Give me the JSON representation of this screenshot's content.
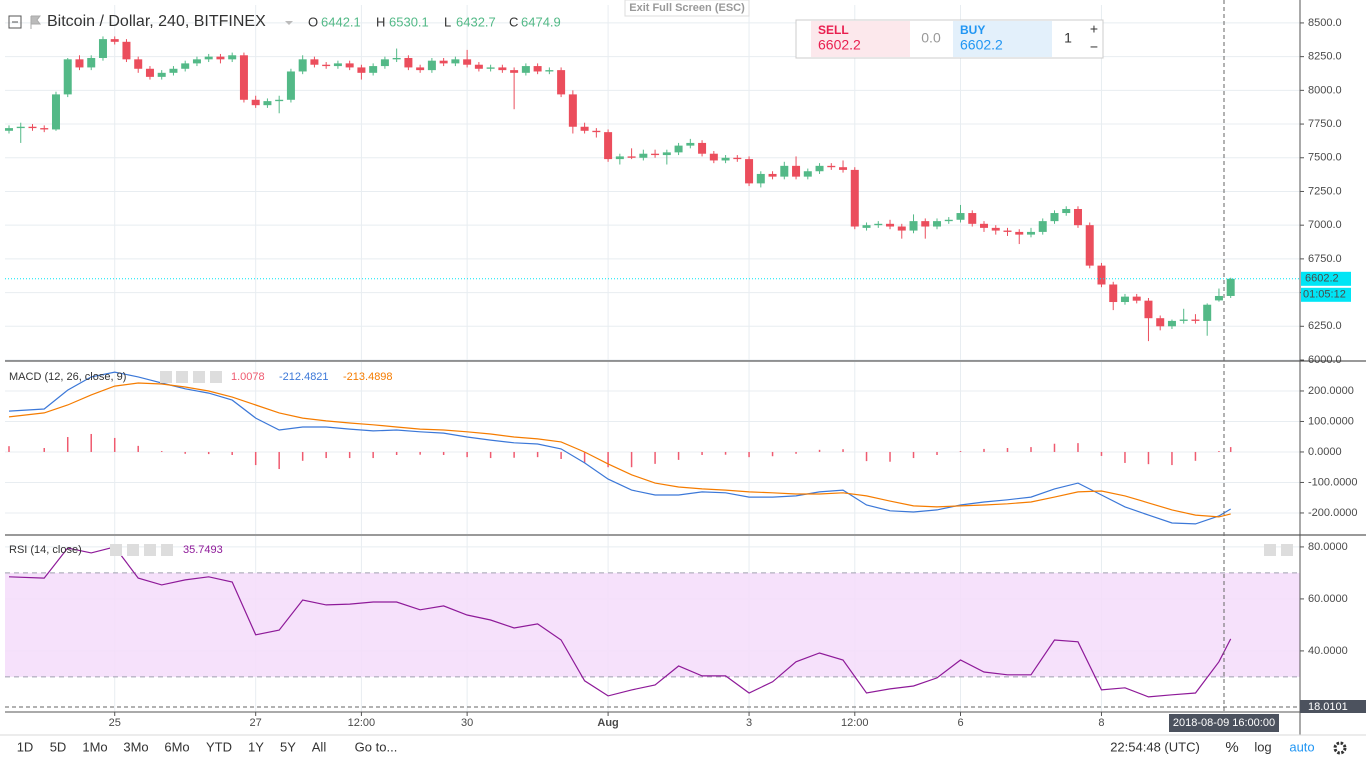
{
  "header": {
    "exit_button": "Exit Full Screen (ESC)"
  },
  "trade": {
    "sell_label": "SELL",
    "sell_price": "6602.2",
    "spread": "0.0",
    "buy_label": "BUY",
    "buy_price": "6602.2",
    "quantity": "1",
    "plus": "+",
    "minus": "−"
  },
  "toolbar": {
    "ranges": [
      "1D",
      "5D",
      "1Mo",
      "3Mo",
      "6Mo",
      "YTD",
      "1Y",
      "5Y",
      "All"
    ],
    "goto": "Go to...",
    "clock": "22:54:48 (UTC)",
    "percent": "%",
    "log": "log",
    "auto": "auto"
  },
  "crosshair": {
    "time": "2018-08-09 16:00:00",
    "value": "18.0101"
  },
  "chart_data": [
    {
      "type": "candlestick",
      "title": "Bitcoin / Dollar, 240, BITFINEX",
      "ohlc_labels": [
        "O",
        "H",
        "L",
        "C"
      ],
      "countdown": "01:05:12",
      "colors": {
        "up": "#53b987",
        "down": "#eb4d5c",
        "last": "#00e5f5"
      },
      "xlim": [
        -0.34,
        109.9
      ],
      "xticks": [
        {
          "value": 9,
          "label": "25"
        },
        {
          "value": 21,
          "label": "27"
        },
        {
          "value": 30,
          "label": "12:00"
        },
        {
          "value": 39,
          "label": "30"
        },
        {
          "value": 51,
          "label": "Aug"
        },
        {
          "value": 63,
          "label": "3"
        },
        {
          "value": 72,
          "label": "12:00"
        },
        {
          "value": 81,
          "label": "6"
        },
        {
          "value": 93,
          "label": "8"
        }
      ],
      "ylim": [
        6000,
        8633
      ],
      "yticks": [
        {
          "value": 6000,
          "label": "6000.0"
        },
        {
          "value": 6250,
          "label": "6250.0"
        },
        {
          "value": 6500,
          "label": "6500.0"
        },
        {
          "value": 6750,
          "label": "6750.0"
        },
        {
          "value": 7000,
          "label": "7000.0"
        },
        {
          "value": 7250,
          "label": "7250.0"
        },
        {
          "value": 7500,
          "label": "7500.0"
        },
        {
          "value": 7750,
          "label": "7750.0"
        },
        {
          "value": 8000,
          "label": "8000.0"
        },
        {
          "value": 8250,
          "label": "8250.0"
        },
        {
          "value": 8500,
          "label": "8500.0"
        }
      ],
      "grid": true,
      "candles": [
        [
          7700,
          7740,
          7680,
          7720
        ],
        [
          7720,
          7760,
          7610,
          7730
        ],
        [
          7730,
          7750,
          7700,
          7720
        ],
        [
          7720,
          7740,
          7690,
          7710
        ],
        [
          7710,
          7990,
          7700,
          7970
        ],
        [
          7970,
          8240,
          7950,
          8230
        ],
        [
          8230,
          8260,
          8150,
          8170
        ],
        [
          8170,
          8260,
          8150,
          8240
        ],
        [
          8240,
          8400,
          8220,
          8380
        ],
        [
          8380,
          8400,
          8340,
          8360
        ],
        [
          8360,
          8380,
          8210,
          8230
        ],
        [
          8230,
          8250,
          8130,
          8160
        ],
        [
          8160,
          8180,
          8080,
          8100
        ],
        [
          8100,
          8150,
          8080,
          8130
        ],
        [
          8130,
          8180,
          8110,
          8160
        ],
        [
          8160,
          8220,
          8140,
          8200
        ],
        [
          8200,
          8250,
          8180,
          8230
        ],
        [
          8230,
          8270,
          8210,
          8250
        ],
        [
          8250,
          8270,
          8200,
          8230
        ],
        [
          8230,
          8280,
          8210,
          8260
        ],
        [
          8260,
          8280,
          7910,
          7930
        ],
        [
          7930,
          7960,
          7870,
          7890
        ],
        [
          7890,
          7940,
          7870,
          7920
        ],
        [
          7920,
          7960,
          7830,
          7930
        ],
        [
          7930,
          8160,
          7910,
          8140
        ],
        [
          8140,
          8260,
          8120,
          8230
        ],
        [
          8230,
          8250,
          8170,
          8190
        ],
        [
          8190,
          8210,
          8160,
          8180
        ],
        [
          8180,
          8220,
          8160,
          8200
        ],
        [
          8200,
          8220,
          8150,
          8170
        ],
        [
          8170,
          8190,
          8080,
          8130
        ],
        [
          8130,
          8200,
          8110,
          8180
        ],
        [
          8180,
          8250,
          8160,
          8230
        ],
        [
          8230,
          8310,
          8210,
          8240
        ],
        [
          8240,
          8260,
          8150,
          8170
        ],
        [
          8170,
          8190,
          8130,
          8150
        ],
        [
          8150,
          8240,
          8130,
          8220
        ],
        [
          8220,
          8240,
          8180,
          8200
        ],
        [
          8200,
          8250,
          8180,
          8230
        ],
        [
          8230,
          8300,
          8170,
          8190
        ],
        [
          8190,
          8210,
          8140,
          8160
        ],
        [
          8160,
          8190,
          8140,
          8170
        ],
        [
          8170,
          8190,
          8130,
          8150
        ],
        [
          8150,
          8170,
          7860,
          8130
        ],
        [
          8130,
          8200,
          8110,
          8180
        ],
        [
          8180,
          8200,
          8120,
          8140
        ],
        [
          8140,
          8170,
          8120,
          8150
        ],
        [
          8150,
          8170,
          7950,
          7970
        ],
        [
          7970,
          8000,
          7680,
          7730
        ],
        [
          7730,
          7760,
          7680,
          7700
        ],
        [
          7700,
          7720,
          7650,
          7690
        ],
        [
          7690,
          7710,
          7470,
          7490
        ],
        [
          7490,
          7530,
          7450,
          7510
        ],
        [
          7510,
          7570,
          7490,
          7500
        ],
        [
          7500,
          7560,
          7480,
          7530
        ],
        [
          7530,
          7560,
          7500,
          7520
        ],
        [
          7520,
          7560,
          7450,
          7540
        ],
        [
          7540,
          7610,
          7520,
          7590
        ],
        [
          7590,
          7640,
          7570,
          7610
        ],
        [
          7610,
          7630,
          7510,
          7530
        ],
        [
          7530,
          7550,
          7460,
          7480
        ],
        [
          7480,
          7520,
          7460,
          7500
        ],
        [
          7500,
          7520,
          7470,
          7490
        ],
        [
          7490,
          7510,
          7290,
          7310
        ],
        [
          7310,
          7400,
          7280,
          7380
        ],
        [
          7380,
          7400,
          7340,
          7360
        ],
        [
          7360,
          7470,
          7340,
          7440
        ],
        [
          7440,
          7510,
          7340,
          7360
        ],
        [
          7360,
          7420,
          7340,
          7400
        ],
        [
          7400,
          7460,
          7380,
          7440
        ],
        [
          7440,
          7460,
          7410,
          7430
        ],
        [
          7430,
          7480,
          7390,
          7410
        ],
        [
          7410,
          7430,
          6970,
          6990
        ],
        [
          6980,
          7020,
          6960,
          7000
        ],
        [
          7000,
          7030,
          6980,
          7010
        ],
        [
          7010,
          7040,
          6970,
          6990
        ],
        [
          6990,
          7010,
          6900,
          6960
        ],
        [
          6960,
          7080,
          6940,
          7030
        ],
        [
          7030,
          7050,
          6900,
          6990
        ],
        [
          6990,
          7050,
          6970,
          7030
        ],
        [
          7030,
          7060,
          7010,
          7040
        ],
        [
          7040,
          7150,
          7020,
          7090
        ],
        [
          7090,
          7110,
          6990,
          7010
        ],
        [
          7010,
          7030,
          6950,
          6980
        ],
        [
          6980,
          7000,
          6930,
          6960
        ],
        [
          6960,
          6980,
          6920,
          6950
        ],
        [
          6950,
          6970,
          6860,
          6930
        ],
        [
          6930,
          6980,
          6910,
          6950
        ],
        [
          6950,
          7050,
          6930,
          7030
        ],
        [
          7030,
          7110,
          7010,
          7090
        ],
        [
          7090,
          7140,
          7070,
          7120
        ],
        [
          7120,
          7140,
          6980,
          7000
        ],
        [
          7000,
          7020,
          6680,
          6700
        ],
        [
          6700,
          6720,
          6540,
          6560
        ],
        [
          6560,
          6580,
          6370,
          6430
        ],
        [
          6430,
          6490,
          6410,
          6470
        ],
        [
          6470,
          6490,
          6420,
          6440
        ],
        [
          6440,
          6460,
          6140,
          6310
        ],
        [
          6310,
          6330,
          6220,
          6250
        ],
        [
          6250,
          6300,
          6230,
          6290
        ],
        [
          6290,
          6380,
          6270,
          6300
        ],
        [
          6300,
          6340,
          6270,
          6290
        ],
        [
          6290,
          6420,
          6180,
          6410
        ],
        [
          6442.1,
          6530.1,
          6432.7,
          6474.9
        ],
        [
          6474.9,
          6610,
          6460,
          6602.2
        ]
      ]
    },
    {
      "type": "macd",
      "title": "MACD (12, 26, close, 9)",
      "legend_values": [
        "1.0078",
        "-212.4821",
        "-213.4898"
      ],
      "ylim": [
        -269,
        295
      ],
      "yticks": [
        {
          "value": -200,
          "label": "-200.0000"
        },
        {
          "value": -100,
          "label": "-100.0000"
        },
        {
          "value": 0,
          "label": "0.0000"
        },
        {
          "value": 100,
          "label": "100.0000"
        },
        {
          "value": 200,
          "label": "200.0000"
        }
      ],
      "x": [
        0,
        3,
        5,
        7,
        9,
        11,
        13,
        15,
        17,
        19,
        21,
        23,
        25,
        27,
        29,
        31,
        33,
        35,
        37,
        39,
        41,
        43,
        45,
        47,
        49,
        51,
        53,
        55,
        57,
        59,
        61,
        63,
        65,
        67,
        69,
        71,
        73,
        75,
        77,
        79,
        81,
        83,
        85,
        87,
        89,
        91,
        93,
        95,
        97,
        99,
        101,
        103,
        104
      ],
      "histogram": {
        "color": "#ef5a6f",
        "values": [
          19,
          13,
          49,
          59,
          46,
          20,
          3,
          -6,
          -7,
          -10,
          -43,
          -56,
          -29,
          -20,
          -20,
          -20,
          -10,
          -9,
          -10,
          -17,
          -20,
          -19,
          -17,
          -23,
          -36,
          -50,
          -50,
          -39,
          -26,
          -10,
          -9,
          -17,
          -14,
          -6,
          7,
          9,
          -30,
          -32,
          -20,
          -10,
          3,
          10,
          13,
          16,
          27,
          29,
          -13,
          -36,
          -40,
          -43,
          -29,
          3,
          16
        ]
      },
      "series": [
        {
          "color": "#3c78d8",
          "values": [
            134,
            141,
            203,
            246,
            262,
            246,
            226,
            207,
            193,
            170,
            111,
            72,
            82,
            82,
            75,
            69,
            72,
            66,
            62,
            49,
            39,
            30,
            26,
            10,
            -36,
            -89,
            -125,
            -141,
            -141,
            -131,
            -134,
            -148,
            -148,
            -144,
            -131,
            -125,
            -174,
            -193,
            -197,
            -190,
            -174,
            -164,
            -157,
            -148,
            -121,
            -102,
            -141,
            -180,
            -207,
            -233,
            -236,
            -210,
            -187
          ]
        },
        {
          "color": "#f57c00",
          "values": [
            115,
            128,
            154,
            187,
            216,
            226,
            223,
            213,
            200,
            180,
            154,
            128,
            111,
            102,
            95,
            89,
            82,
            75,
            72,
            66,
            59,
            49,
            43,
            33,
            0,
            -39,
            -75,
            -102,
            -115,
            -121,
            -125,
            -131,
            -134,
            -138,
            -138,
            -134,
            -144,
            -161,
            -177,
            -180,
            -177,
            -174,
            -170,
            -164,
            -148,
            -131,
            -128,
            -144,
            -167,
            -190,
            -207,
            -213,
            -203
          ]
        }
      ]
    },
    {
      "type": "line",
      "title": "RSI (14, close)",
      "legend_value": "35.7493",
      "color": "#8e1a99",
      "band": [
        30,
        70
      ],
      "band_color": "#f5dcfa",
      "ylim": [
        16.5,
        84.2
      ],
      "yticks": [
        {
          "value": 40,
          "label": "40.0000"
        },
        {
          "value": 60,
          "label": "60.0000"
        },
        {
          "value": 80,
          "label": "80.0000"
        }
      ],
      "x": [
        0,
        3,
        5,
        7,
        9,
        11,
        13,
        15,
        17,
        19,
        21,
        23,
        25,
        27,
        29,
        31,
        33,
        35,
        37,
        39,
        41,
        43,
        45,
        47,
        49,
        51,
        53,
        55,
        57,
        59,
        61,
        63,
        65,
        67,
        69,
        71,
        73,
        75,
        77,
        79,
        81,
        83,
        85,
        87,
        89,
        91,
        93,
        95,
        97,
        99,
        101,
        103,
        104
      ],
      "values": [
        68.5,
        68,
        79.6,
        77.7,
        80,
        68,
        65.4,
        67.3,
        68.5,
        66.5,
        46.2,
        48,
        59.6,
        57.7,
        58,
        58.8,
        58.8,
        55.8,
        57.3,
        53.8,
        51.9,
        48.8,
        50.4,
        44.2,
        28.5,
        22.7,
        25,
        26.9,
        34.2,
        30.4,
        30.4,
        23.8,
        28.1,
        35.8,
        39.2,
        36.5,
        23.8,
        25.4,
        26.5,
        29.6,
        36.5,
        31.9,
        30.8,
        30.8,
        44.2,
        43.5,
        25,
        25.8,
        22.3,
        23.1,
        23.8,
        35.8,
        44.6
      ]
    }
  ]
}
